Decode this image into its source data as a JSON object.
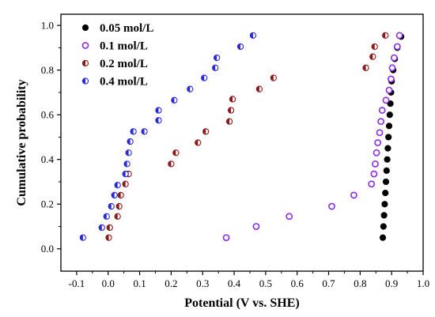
{
  "chart_data": {
    "type": "scatter",
    "xlabel": "Potential (V vs. SHE)",
    "ylabel": "Cumulative probability",
    "xlim": [
      -0.15,
      1.0
    ],
    "ylim": [
      -0.1,
      1.05
    ],
    "xticks": [
      "-0.1",
      "0.0",
      "0.1",
      "0.2",
      "0.3",
      "0.4",
      "0.5",
      "0.6",
      "0.7",
      "0.8",
      "0.9",
      "1.0"
    ],
    "yticks": [
      "0.0",
      "0.2",
      "0.4",
      "0.6",
      "0.8",
      "1.0"
    ],
    "grid": false,
    "legend_position": "top-left",
    "series": [
      {
        "name": "0.05 mol/L",
        "marker": "filled-circle",
        "color": "#000000",
        "points": [
          [
            0.872,
            0.05
          ],
          [
            0.874,
            0.1
          ],
          [
            0.876,
            0.15
          ],
          [
            0.878,
            0.2
          ],
          [
            0.88,
            0.25
          ],
          [
            0.882,
            0.3
          ],
          [
            0.884,
            0.35
          ],
          [
            0.886,
            0.4
          ],
          [
            0.888,
            0.45
          ],
          [
            0.89,
            0.5
          ],
          [
            0.892,
            0.55
          ],
          [
            0.894,
            0.6
          ],
          [
            0.896,
            0.65
          ],
          [
            0.898,
            0.7
          ],
          [
            0.9,
            0.75
          ],
          [
            0.905,
            0.8
          ],
          [
            0.91,
            0.85
          ],
          [
            0.918,
            0.9
          ],
          [
            0.93,
            0.95
          ]
        ]
      },
      {
        "name": "0.1 mol/L",
        "marker": "open-circle",
        "color": "#8a2be2",
        "points": [
          [
            0.375,
            0.05
          ],
          [
            0.47,
            0.1
          ],
          [
            0.575,
            0.145
          ],
          [
            0.71,
            0.19
          ],
          [
            0.78,
            0.24
          ],
          [
            0.836,
            0.29
          ],
          [
            0.844,
            0.335
          ],
          [
            0.848,
            0.38
          ],
          [
            0.852,
            0.43
          ],
          [
            0.856,
            0.475
          ],
          [
            0.862,
            0.52
          ],
          [
            0.866,
            0.57
          ],
          [
            0.87,
            0.62
          ],
          [
            0.882,
            0.665
          ],
          [
            0.892,
            0.71
          ],
          [
            0.898,
            0.76
          ],
          [
            0.902,
            0.81
          ],
          [
            0.908,
            0.855
          ],
          [
            0.918,
            0.905
          ],
          [
            0.925,
            0.955
          ]
        ]
      },
      {
        "name": "0.2 mol/L",
        "marker": "half-filled-circle",
        "color": "#8b1a1a",
        "points": [
          [
            0.002,
            0.05
          ],
          [
            0.005,
            0.095
          ],
          [
            0.03,
            0.145
          ],
          [
            0.035,
            0.19
          ],
          [
            0.04,
            0.24
          ],
          [
            0.055,
            0.29
          ],
          [
            0.065,
            0.335
          ],
          [
            0.2,
            0.38
          ],
          [
            0.215,
            0.43
          ],
          [
            0.285,
            0.475
          ],
          [
            0.31,
            0.525
          ],
          [
            0.385,
            0.57
          ],
          [
            0.39,
            0.62
          ],
          [
            0.395,
            0.67
          ],
          [
            0.48,
            0.715
          ],
          [
            0.525,
            0.765
          ],
          [
            0.818,
            0.81
          ],
          [
            0.84,
            0.86
          ],
          [
            0.846,
            0.905
          ],
          [
            0.88,
            0.955
          ]
        ]
      },
      {
        "name": "0.4 mol/L",
        "marker": "half-filled-circle",
        "color": "#2a2ad8",
        "points": [
          [
            -0.08,
            0.05
          ],
          [
            -0.02,
            0.095
          ],
          [
            -0.005,
            0.145
          ],
          [
            0.01,
            0.19
          ],
          [
            0.02,
            0.24
          ],
          [
            0.03,
            0.285
          ],
          [
            0.055,
            0.335
          ],
          [
            0.06,
            0.38
          ],
          [
            0.065,
            0.43
          ],
          [
            0.07,
            0.48
          ],
          [
            0.08,
            0.525
          ],
          [
            0.115,
            0.525
          ],
          [
            0.16,
            0.575
          ],
          [
            0.16,
            0.62
          ],
          [
            0.21,
            0.665
          ],
          [
            0.26,
            0.715
          ],
          [
            0.305,
            0.765
          ],
          [
            0.34,
            0.81
          ],
          [
            0.345,
            0.855
          ],
          [
            0.42,
            0.905
          ],
          [
            0.46,
            0.955
          ]
        ]
      }
    ]
  }
}
